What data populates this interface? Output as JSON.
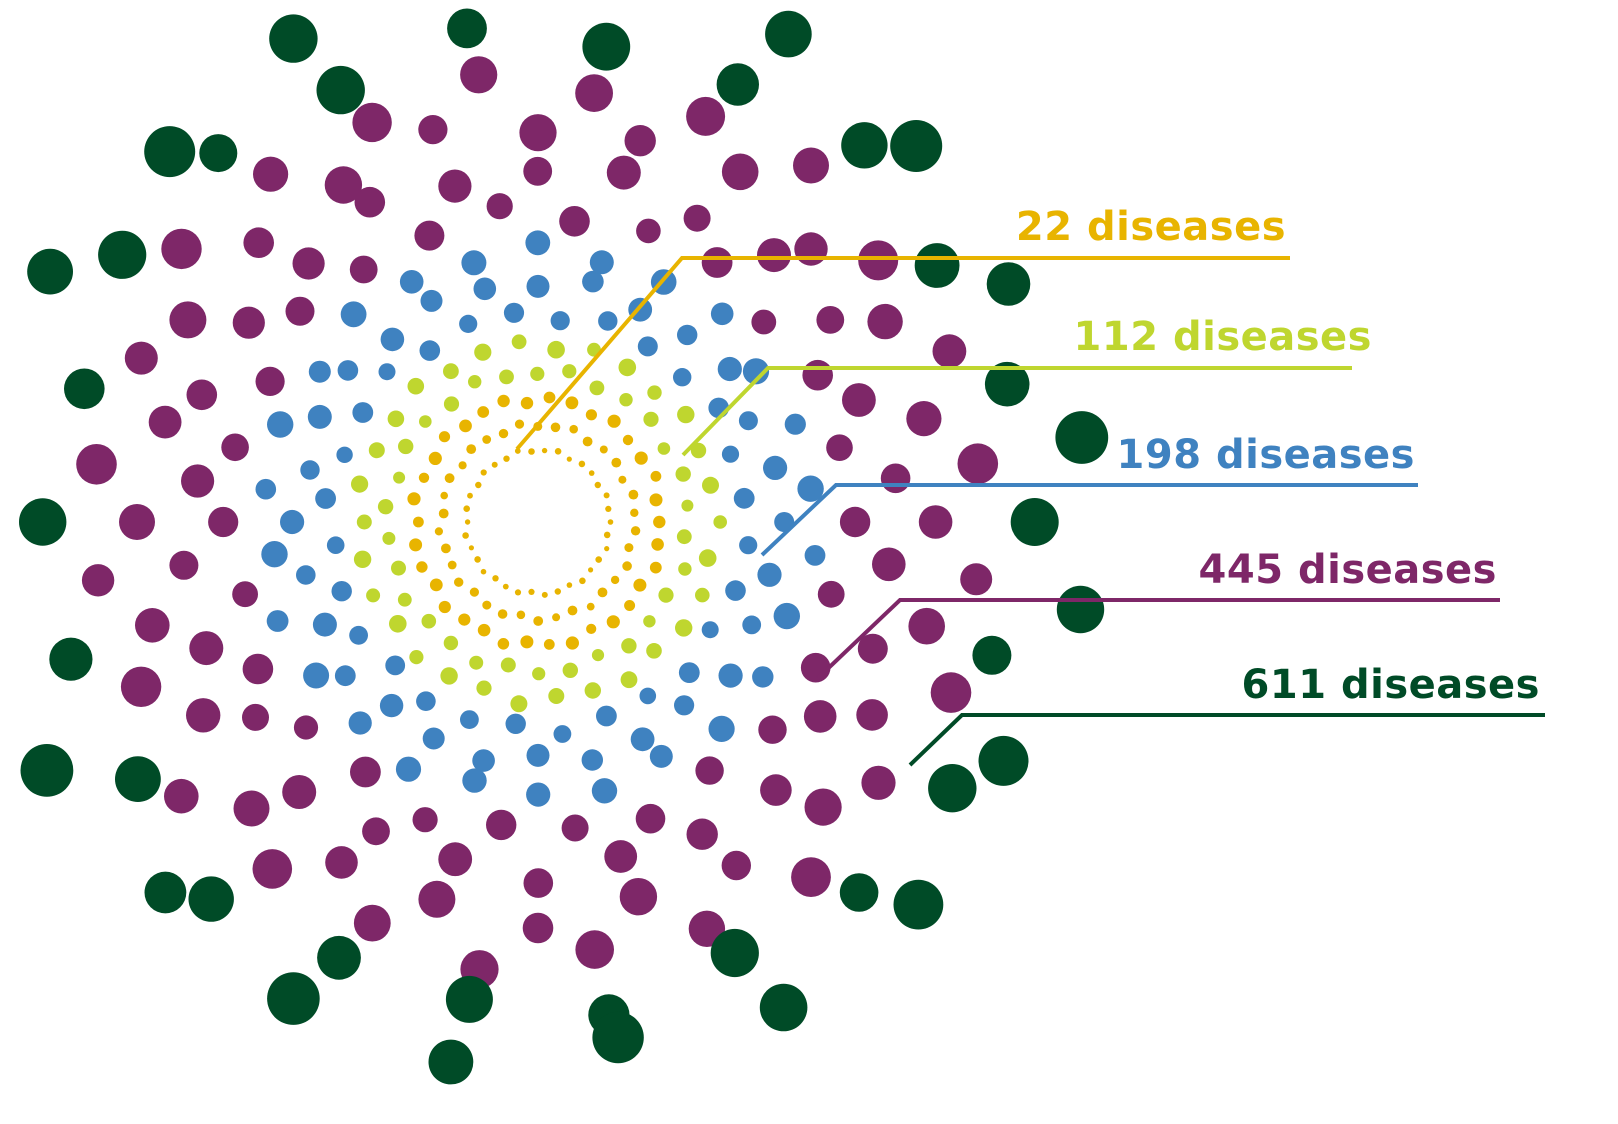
{
  "groups": [
    {
      "id": "g22",
      "label": "22 diseases",
      "count": 22,
      "color": "#e8b400"
    },
    {
      "id": "g112",
      "label": "112 diseases",
      "count": 112,
      "color": "#bfd62f"
    },
    {
      "id": "g198",
      "label": "198 diseases",
      "count": 198,
      "color": "#3f82c0"
    },
    {
      "id": "g445",
      "label": "445 diseases",
      "count": 445,
      "color": "#7e2768"
    },
    {
      "id": "g611",
      "label": "611 diseases",
      "count": 611,
      "color": "#004b27"
    }
  ]
}
